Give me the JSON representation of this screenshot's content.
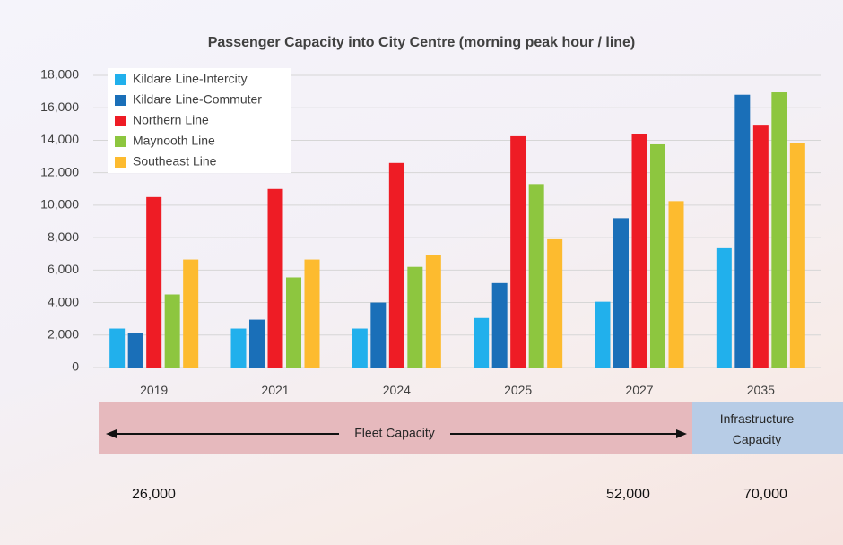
{
  "chart_data": {
    "type": "bar",
    "title": "Passenger Capacity into City Centre (morning peak hour / line)",
    "categories": [
      "2019",
      "2021",
      "2024",
      "2025",
      "2027",
      "2035"
    ],
    "ylim": [
      0,
      18000
    ],
    "yticks": [
      0,
      2000,
      4000,
      6000,
      8000,
      10000,
      12000,
      14000,
      16000,
      18000
    ],
    "ytick_labels": [
      "0",
      "2,000",
      "4,000",
      "6,000",
      "8,000",
      "10,000",
      "12,000",
      "14,000",
      "16,000",
      "18,000"
    ],
    "grid": true,
    "legend_position": "top-left",
    "series": [
      {
        "name": "Kildare Line-Intercity",
        "color": "#21b0ec",
        "values": [
          2400,
          2400,
          2400,
          3050,
          4050,
          7350
        ]
      },
      {
        "name": "Kildare Line-Commuter",
        "color": "#1a6fb8",
        "values": [
          2100,
          2950,
          4000,
          5200,
          9200,
          16800
        ]
      },
      {
        "name": "Northern Line",
        "color": "#ee1c25",
        "values": [
          10500,
          11000,
          12600,
          14250,
          14400,
          14900
        ]
      },
      {
        "name": "Maynooth Line",
        "color": "#8dc63f",
        "values": [
          4500,
          5550,
          6200,
          11300,
          13750,
          16950
        ]
      },
      {
        "name": "Southeast Line",
        "color": "#fdbb2f",
        "values": [
          6650,
          6650,
          6950,
          7900,
          10250,
          13850
        ]
      }
    ]
  },
  "bands": {
    "fleet_label": "Fleet Capacity",
    "infra_label_line1": "Infrastructure",
    "infra_label_line2": "Capacity"
  },
  "totals": [
    "26,000",
    "52,000",
    "70,000"
  ]
}
